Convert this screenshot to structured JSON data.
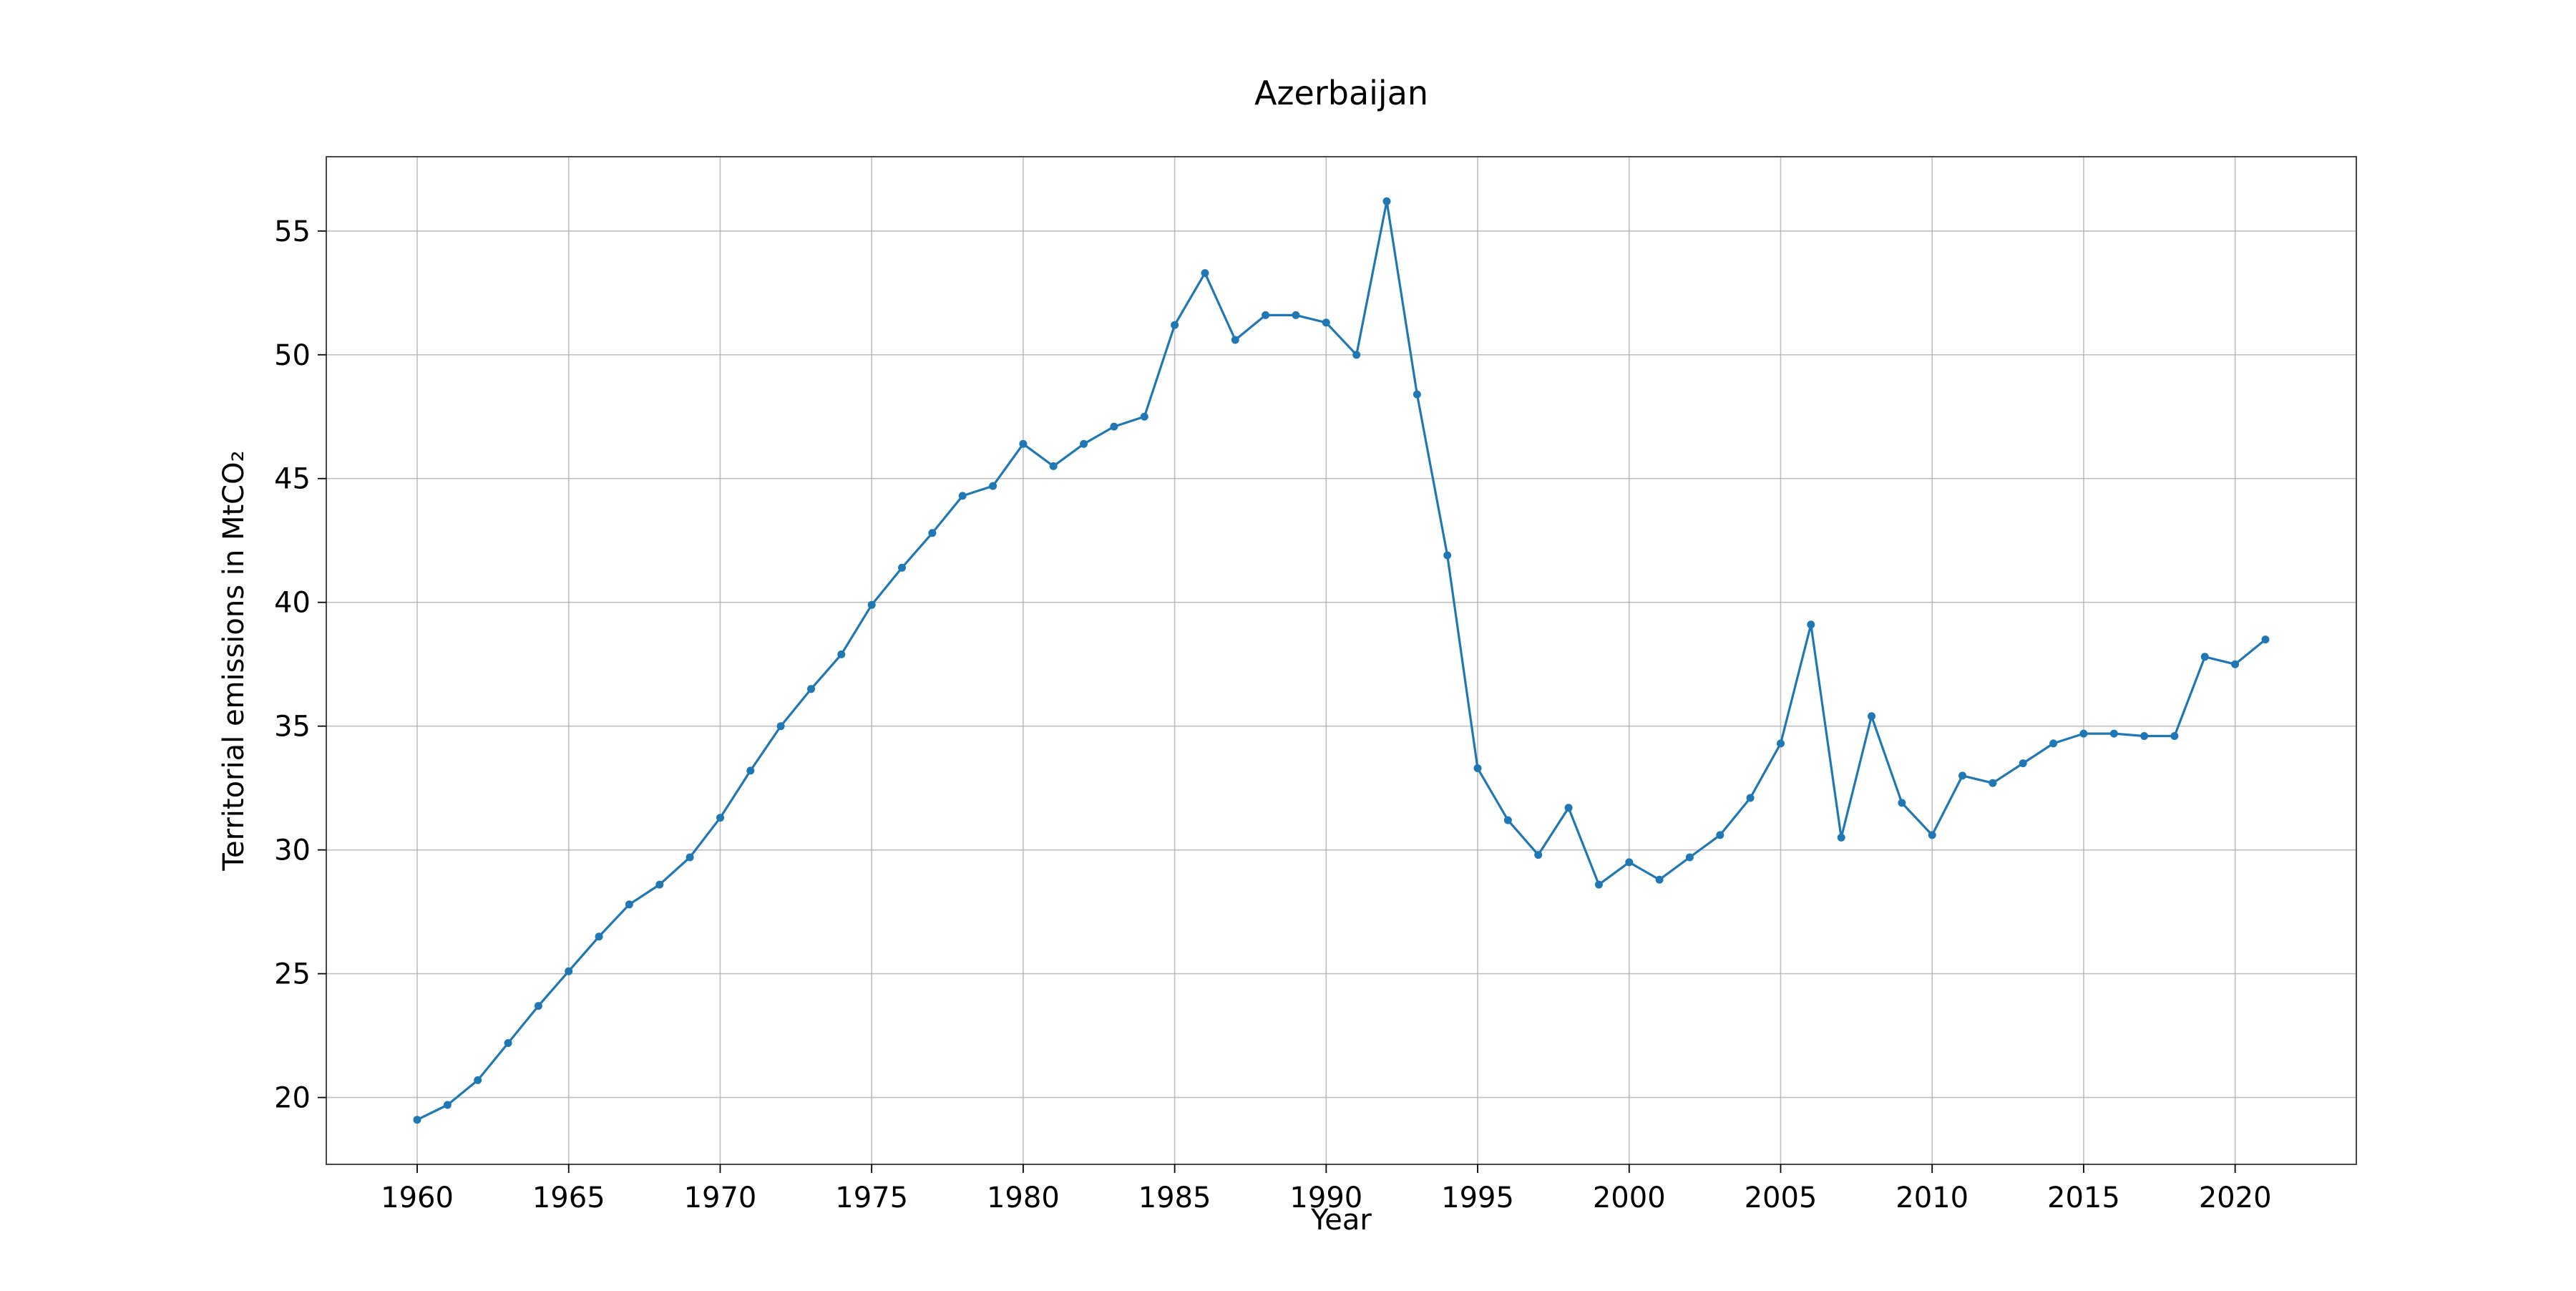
{
  "chart_data": {
    "type": "line",
    "title": "Azerbaijan",
    "xlabel": "Year",
    "ylabel": "Territorial emissions in MtCO₂",
    "xlim": [
      1957,
      2024
    ],
    "ylim": [
      17.3,
      58.0
    ],
    "xticks": [
      1960,
      1965,
      1970,
      1975,
      1980,
      1985,
      1990,
      1995,
      2000,
      2005,
      2010,
      2015,
      2020
    ],
    "yticks": [
      20,
      25,
      30,
      35,
      40,
      45,
      50,
      55
    ],
    "grid": true,
    "legend": "none",
    "series": [
      {
        "color": "#1f77b4",
        "marker": "circle",
        "x": [
          1960,
          1961,
          1962,
          1963,
          1964,
          1965,
          1966,
          1967,
          1968,
          1969,
          1970,
          1971,
          1972,
          1973,
          1974,
          1975,
          1976,
          1977,
          1978,
          1979,
          1980,
          1981,
          1982,
          1983,
          1984,
          1985,
          1986,
          1987,
          1988,
          1989,
          1990,
          1991,
          1992,
          1993,
          1994,
          1995,
          1996,
          1997,
          1998,
          1999,
          2000,
          2001,
          2002,
          2003,
          2004,
          2005,
          2006,
          2007,
          2008,
          2009,
          2010,
          2011,
          2012,
          2013,
          2014,
          2015,
          2016,
          2017,
          2018,
          2019,
          2020,
          2021
        ],
        "y": [
          19.1,
          19.7,
          20.7,
          22.2,
          23.7,
          25.1,
          26.5,
          27.8,
          28.6,
          29.7,
          31.3,
          33.2,
          35.0,
          36.5,
          37.9,
          39.9,
          41.4,
          42.8,
          44.3,
          44.7,
          46.4,
          45.5,
          46.4,
          47.1,
          47.5,
          51.2,
          53.3,
          50.6,
          51.6,
          51.6,
          51.3,
          50.0,
          56.2,
          48.4,
          41.9,
          33.3,
          31.2,
          29.8,
          31.7,
          28.6,
          29.5,
          28.8,
          29.7,
          30.6,
          32.1,
          34.3,
          39.1,
          30.5,
          35.4,
          31.9,
          30.6,
          33.0,
          32.7,
          33.5,
          34.3,
          34.7,
          34.7,
          34.6,
          34.6,
          37.8,
          37.5,
          38.5
        ]
      }
    ]
  }
}
